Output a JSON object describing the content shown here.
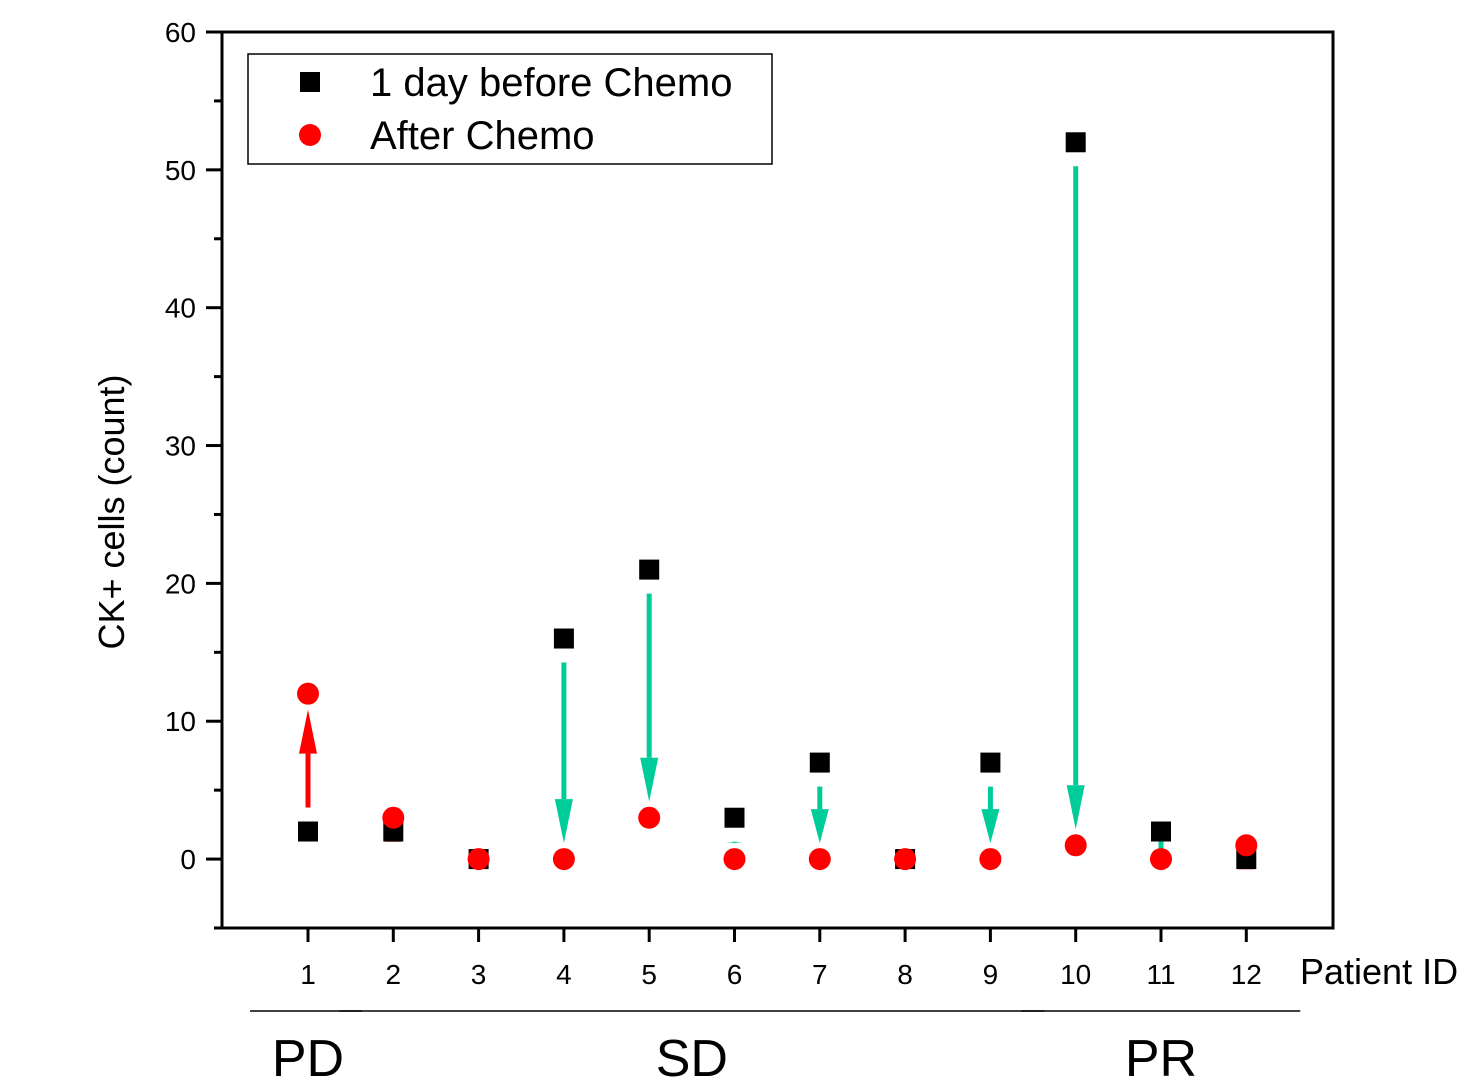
{
  "chart_data": {
    "type": "scatter",
    "xlabel": "Patient ID",
    "ylabel": "CK+ cells (count)",
    "categories": [
      "1",
      "2",
      "3",
      "4",
      "5",
      "6",
      "7",
      "8",
      "9",
      "10",
      "11",
      "12"
    ],
    "ylim": [
      -5,
      60
    ],
    "yticks": [
      0,
      10,
      20,
      30,
      40,
      50,
      60
    ],
    "grid": false,
    "legend_position": "top-left",
    "series": [
      {
        "name": "1 day before Chemo",
        "marker": "square",
        "color": "#000000",
        "values": [
          2,
          2,
          0,
          16,
          21,
          3,
          7,
          0,
          7,
          52,
          2,
          0
        ]
      },
      {
        "name": "After Chemo",
        "marker": "circle",
        "color": "#ff0000",
        "values": [
          12,
          3,
          0,
          0,
          3,
          0,
          0,
          0,
          0,
          1,
          0,
          1
        ]
      }
    ],
    "change_colors": {
      "increase": "#ff0000",
      "decrease": "#00cc99"
    },
    "groups": [
      {
        "label": "PD",
        "from": "1",
        "to": "1"
      },
      {
        "label": "SD",
        "from": "2",
        "to": "9"
      },
      {
        "label": "PR",
        "from": "10",
        "to": "12"
      }
    ]
  }
}
